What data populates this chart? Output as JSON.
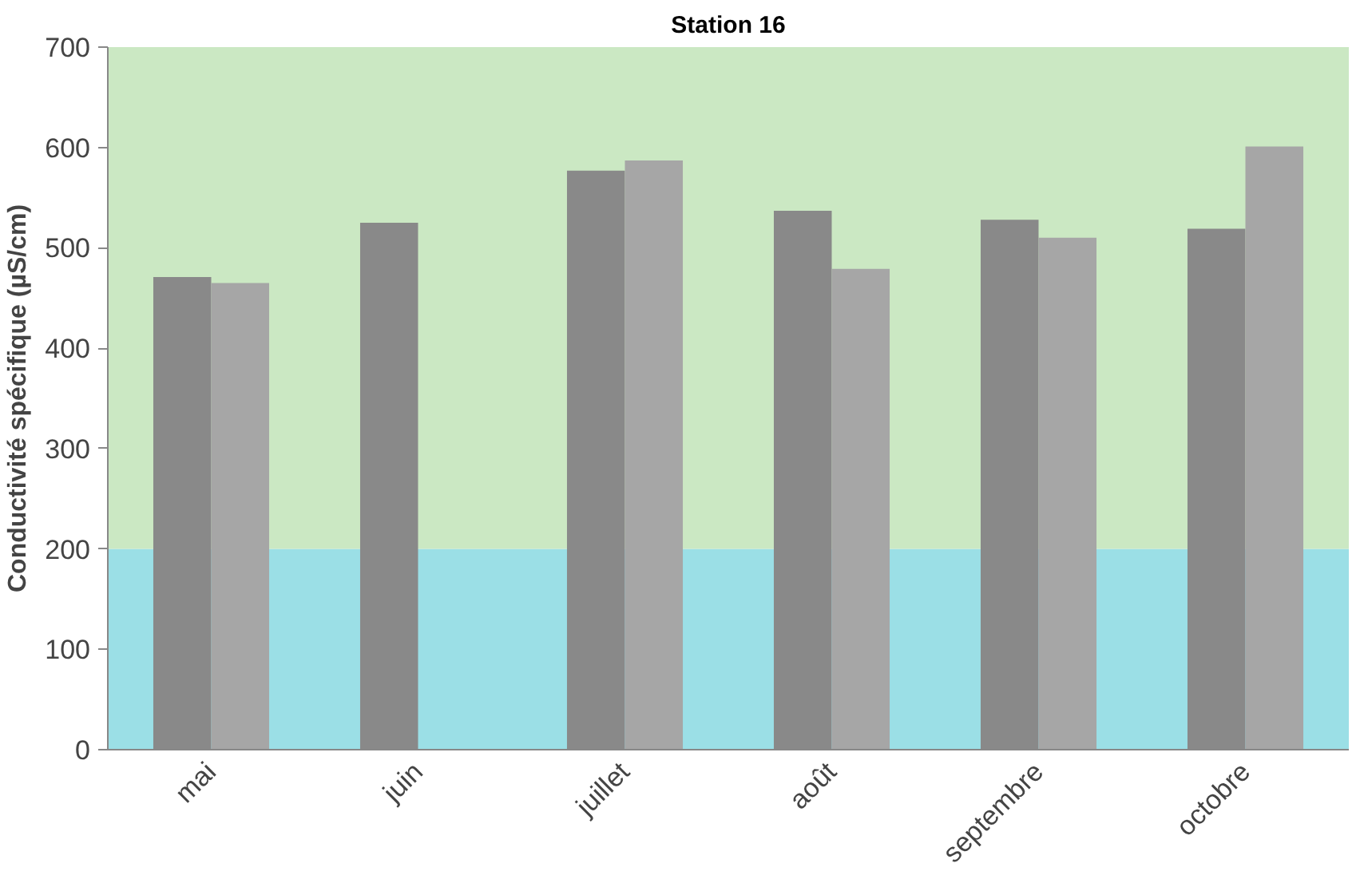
{
  "chart_data": {
    "type": "bar",
    "title": "Station 16",
    "ylabel": "Conductivité spécifique (µS/cm)",
    "categories": [
      "mai",
      "juin",
      "juillet",
      "août",
      "septembre",
      "octobre"
    ],
    "series": [
      {
        "color": "#898989",
        "values": [
          471,
          525,
          577,
          537,
          528,
          519
        ]
      },
      {
        "color": "#a6a6a6",
        "values": [
          465,
          null,
          587,
          479,
          510,
          601
        ]
      }
    ],
    "ylim": [
      0,
      700
    ],
    "yticks": [
      0,
      100,
      200,
      300,
      400,
      500,
      600,
      700
    ],
    "grid": false,
    "bands": [
      {
        "axis": "y",
        "from": 0,
        "to": 200,
        "color": "#9bdfe6"
      },
      {
        "axis": "y",
        "from": 200,
        "to": 700,
        "color": "#cbe8c3"
      }
    ]
  }
}
